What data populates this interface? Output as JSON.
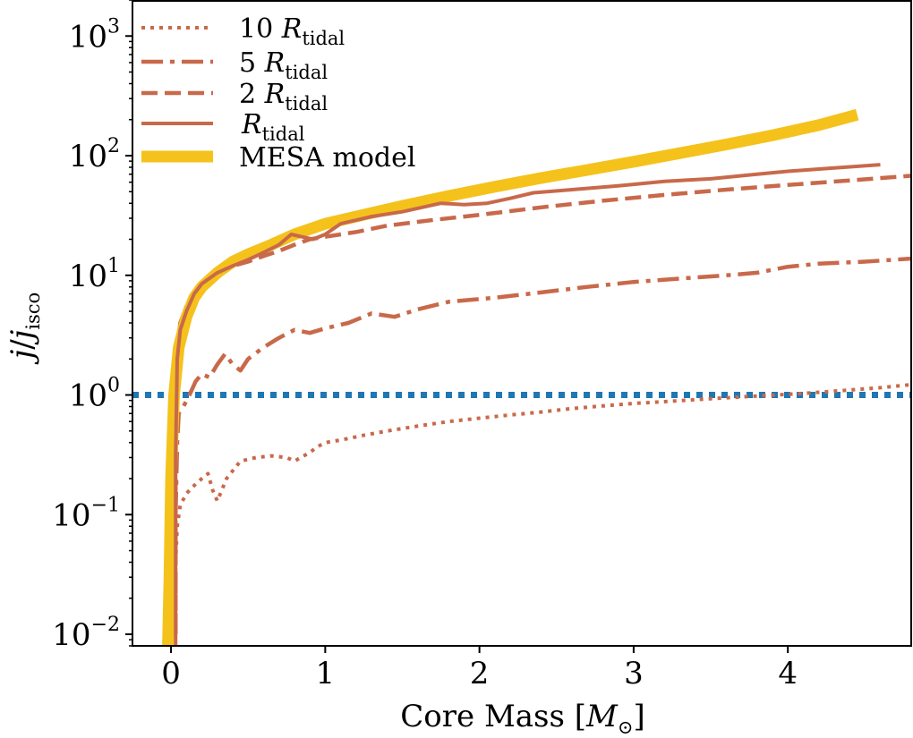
{
  "chart_data": {
    "type": "line",
    "xscale": "linear",
    "yscale": "log",
    "xlim": [
      -0.25,
      4.8
    ],
    "ylim": [
      0.008,
      2000
    ],
    "xlabel": {
      "text": "Core Mass [",
      "sym": "M",
      "sub": "⊙",
      "end": "]"
    },
    "ylabel": {
      "j": "j",
      "slash": "/",
      "j2": "j",
      "sub": "isco"
    },
    "x_ticks": [
      {
        "value": 0,
        "label": "0"
      },
      {
        "value": 1,
        "label": "1"
      },
      {
        "value": 2,
        "label": "2"
      },
      {
        "value": 3,
        "label": "3"
      },
      {
        "value": 4,
        "label": "4"
      }
    ],
    "y_ticks": [
      {
        "value": 0.01,
        "base": "10",
        "exp": "−2"
      },
      {
        "value": 0.1,
        "base": "10",
        "exp": "−1"
      },
      {
        "value": 1,
        "base": "10",
        "exp": "0"
      },
      {
        "value": 10,
        "base": "10",
        "exp": "1"
      },
      {
        "value": 100,
        "base": "10",
        "exp": "2"
      },
      {
        "value": 1000,
        "base": "10",
        "exp": "3"
      }
    ],
    "reference_line": {
      "y": 1,
      "color": "#1f77b4",
      "style": "dotted"
    },
    "legend": {
      "location": "upper-left",
      "entries": [
        {
          "series": "10rt",
          "prefix": "10 ",
          "sym": "R",
          "sub": "tidal"
        },
        {
          "series": "5rt",
          "prefix": "5 ",
          "sym": "R",
          "sub": "tidal"
        },
        {
          "series": "2rt",
          "prefix": "2 ",
          "sym": "R",
          "sub": "tidal"
        },
        {
          "series": "rt",
          "prefix": "",
          "sym": "R",
          "sub": "tidal"
        },
        {
          "series": "mesa",
          "prefix": "MESA model",
          "sym": "",
          "sub": ""
        }
      ]
    },
    "series": [
      {
        "id": "10rt",
        "name": "10 R_tidal",
        "color": "#c8694a",
        "style": "dotted",
        "width": 4,
        "points": [
          [
            0.03,
            0.01
          ],
          [
            0.03,
            0.04
          ],
          [
            0.04,
            0.08
          ],
          [
            0.06,
            0.12
          ],
          [
            0.1,
            0.15
          ],
          [
            0.16,
            0.18
          ],
          [
            0.2,
            0.2
          ],
          [
            0.24,
            0.22
          ],
          [
            0.27,
            0.16
          ],
          [
            0.3,
            0.13
          ],
          [
            0.36,
            0.2
          ],
          [
            0.45,
            0.28
          ],
          [
            0.55,
            0.3
          ],
          [
            0.65,
            0.31
          ],
          [
            0.75,
            0.3
          ],
          [
            0.8,
            0.28
          ],
          [
            0.9,
            0.33
          ],
          [
            0.95,
            0.37
          ],
          [
            1.0,
            0.4
          ],
          [
            1.1,
            0.42
          ],
          [
            1.25,
            0.46
          ],
          [
            1.4,
            0.5
          ],
          [
            1.6,
            0.55
          ],
          [
            1.8,
            0.6
          ],
          [
            2.0,
            0.64
          ],
          [
            2.2,
            0.68
          ],
          [
            2.4,
            0.72
          ],
          [
            2.6,
            0.77
          ],
          [
            2.8,
            0.81
          ],
          [
            3.0,
            0.85
          ],
          [
            3.2,
            0.88
          ],
          [
            3.5,
            0.93
          ],
          [
            3.8,
            0.98
          ],
          [
            4.1,
            1.03
          ],
          [
            4.4,
            1.1
          ],
          [
            4.6,
            1.15
          ],
          [
            4.8,
            1.22
          ]
        ]
      },
      {
        "id": "5rt",
        "name": "5 R_tidal",
        "color": "#c8694a",
        "style": "dashdot",
        "width": 4.5,
        "points": [
          [
            0.03,
            0.01
          ],
          [
            0.03,
            0.1
          ],
          [
            0.04,
            0.4
          ],
          [
            0.05,
            0.7
          ],
          [
            0.08,
            0.8
          ],
          [
            0.12,
            1.0
          ],
          [
            0.16,
            1.3
          ],
          [
            0.2,
            1.5
          ],
          [
            0.25,
            1.4
          ],
          [
            0.3,
            1.8
          ],
          [
            0.35,
            2.2
          ],
          [
            0.4,
            1.8
          ],
          [
            0.45,
            1.6
          ],
          [
            0.5,
            2.0
          ],
          [
            0.6,
            2.5
          ],
          [
            0.7,
            3.0
          ],
          [
            0.8,
            3.5
          ],
          [
            0.9,
            3.3
          ],
          [
            1.0,
            3.6
          ],
          [
            1.15,
            4.0
          ],
          [
            1.3,
            4.8
          ],
          [
            1.45,
            4.5
          ],
          [
            1.6,
            5.2
          ],
          [
            1.8,
            6.0
          ],
          [
            2.1,
            6.5
          ],
          [
            2.4,
            7.2
          ],
          [
            2.7,
            8.0
          ],
          [
            3.0,
            8.8
          ],
          [
            3.3,
            9.4
          ],
          [
            3.6,
            10.0
          ],
          [
            3.8,
            10.5
          ],
          [
            4.0,
            11.8
          ],
          [
            4.2,
            12.5
          ],
          [
            4.5,
            13.0
          ],
          [
            4.8,
            13.8
          ]
        ]
      },
      {
        "id": "2rt",
        "name": "2 R_tidal",
        "color": "#c8694a",
        "style": "dashed",
        "width": 4.5,
        "points": [
          [
            0.03,
            0.01
          ],
          [
            0.03,
            0.5
          ],
          [
            0.04,
            2.5
          ],
          [
            0.06,
            4.0
          ],
          [
            0.1,
            5.5
          ],
          [
            0.15,
            6.5
          ],
          [
            0.2,
            8.0
          ],
          [
            0.3,
            10.0
          ],
          [
            0.4,
            12.0
          ],
          [
            0.5,
            13.0
          ],
          [
            0.6,
            14.5
          ],
          [
            0.7,
            16.0
          ],
          [
            0.8,
            18.0
          ],
          [
            0.9,
            20.0
          ],
          [
            1.0,
            21.0
          ],
          [
            1.2,
            23.0
          ],
          [
            1.4,
            26.0
          ],
          [
            1.7,
            29.0
          ],
          [
            2.0,
            32.0
          ],
          [
            2.4,
            37.0
          ],
          [
            2.8,
            42.0
          ],
          [
            3.2,
            47.0
          ],
          [
            3.6,
            52.0
          ],
          [
            4.0,
            57.0
          ],
          [
            4.4,
            62.0
          ],
          [
            4.8,
            68.0
          ]
        ]
      },
      {
        "id": "mesa",
        "name": "MESA model",
        "color": "#f5c21b",
        "style": "solid",
        "width": 13,
        "points": [
          [
            -0.02,
            0.008
          ],
          [
            -0.01,
            0.03
          ],
          [
            0.0,
            0.2
          ],
          [
            0.02,
            1.0
          ],
          [
            0.05,
            2.5
          ],
          [
            0.1,
            4.5
          ],
          [
            0.15,
            6.5
          ],
          [
            0.2,
            8.0
          ],
          [
            0.3,
            10.5
          ],
          [
            0.4,
            13.0
          ],
          [
            0.5,
            15.0
          ],
          [
            0.65,
            18.0
          ],
          [
            0.8,
            22.0
          ],
          [
            1.0,
            27.0
          ],
          [
            1.2,
            31.0
          ],
          [
            1.5,
            38.0
          ],
          [
            1.8,
            46.0
          ],
          [
            2.1,
            55.0
          ],
          [
            2.4,
            65.0
          ],
          [
            2.7,
            76.0
          ],
          [
            3.0,
            89.0
          ],
          [
            3.3,
            105.0
          ],
          [
            3.6,
            124.0
          ],
          [
            3.9,
            148.0
          ],
          [
            4.2,
            180.0
          ],
          [
            4.45,
            220.0
          ]
        ]
      },
      {
        "id": "rt",
        "name": "R_tidal",
        "color": "#c8694a",
        "style": "solid",
        "width": 4,
        "points": [
          [
            0.03,
            0.008
          ],
          [
            0.03,
            0.3
          ],
          [
            0.04,
            2.0
          ],
          [
            0.06,
            3.5
          ],
          [
            0.1,
            5.0
          ],
          [
            0.15,
            7.0
          ],
          [
            0.2,
            8.5
          ],
          [
            0.3,
            10.5
          ],
          [
            0.4,
            12.0
          ],
          [
            0.5,
            13.5
          ],
          [
            0.6,
            15.5
          ],
          [
            0.7,
            18.0
          ],
          [
            0.78,
            22.0
          ],
          [
            0.85,
            21.0
          ],
          [
            0.92,
            20.0
          ],
          [
            1.0,
            22.0
          ],
          [
            1.1,
            27.0
          ],
          [
            1.3,
            31.0
          ],
          [
            1.5,
            34.0
          ],
          [
            1.75,
            40.0
          ],
          [
            1.9,
            39.0
          ],
          [
            2.05,
            40.0
          ],
          [
            2.2,
            44.0
          ],
          [
            2.35,
            49.0
          ],
          [
            2.6,
            52.0
          ],
          [
            2.9,
            56.0
          ],
          [
            3.2,
            61.0
          ],
          [
            3.5,
            64.0
          ],
          [
            3.8,
            70.0
          ],
          [
            4.0,
            74.0
          ],
          [
            4.3,
            79.0
          ],
          [
            4.6,
            84.0
          ]
        ]
      }
    ]
  }
}
